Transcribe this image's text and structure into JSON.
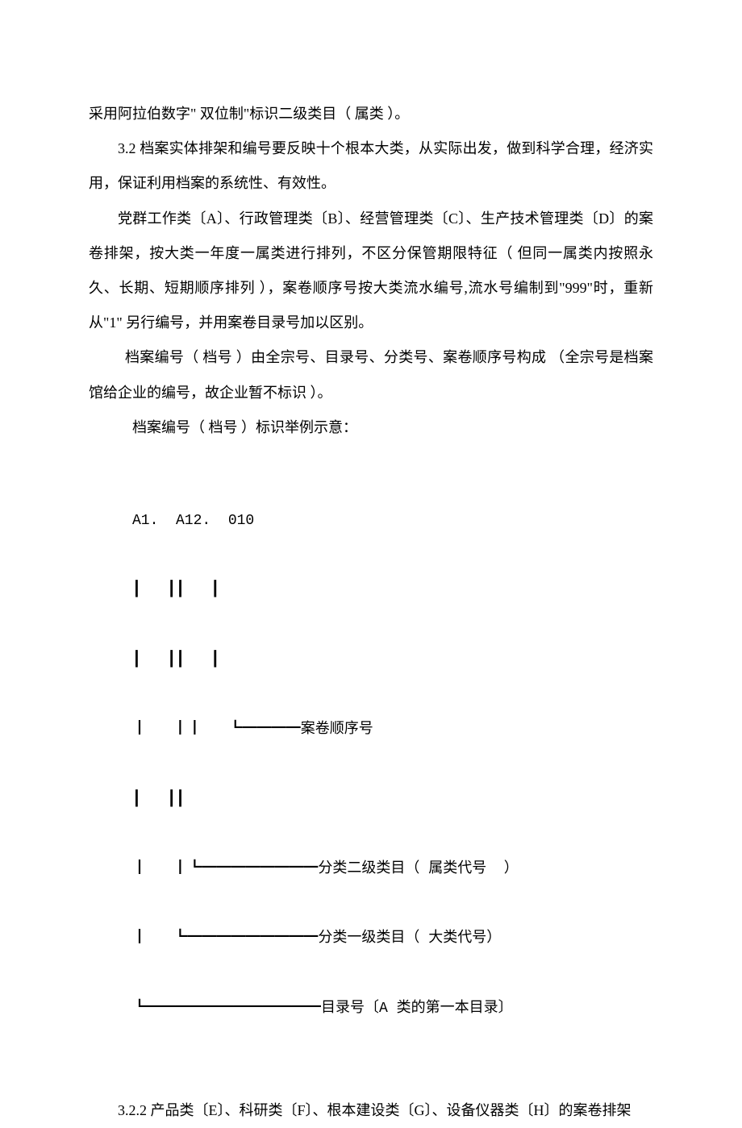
{
  "paragraphs": {
    "p1": "采用阿拉伯数字\" 双位制\"标识二级类目（ 属类 ）。",
    "p2": "3.2  档案实体排架和编号要反映十个根本大类，从实际出发，做到科学合理，经济实用，保证利用档案的系统性、有效性。",
    "p3": "党群工作类〔A〕、行政管理类〔B〕、经营管理类〔C〕、生产技术管理类〔D〕的案卷排架，按大类一年度一属类进行排列，不区分保管期限特征（ 但同一属类内按照永久、长期、短期顺序排列 ），案卷顺序号按大类流水编号,流水号编制到\"999\"时，重新从\"1\"  另行编号，并用案卷目录号加以区别。",
    "p4": "档案编号（ 档号 ）由全宗号、目录号、分类号、案卷顺序号构成 （全宗号是档案馆给企业的编号，故企业暂不标识  ）。",
    "p5": "档案编号（ 档号 ）标识举例示意：",
    "p6": "3.2.2 产品类〔E〕、科研类〔F〕、根本建设类〔G〕、设备仪器类〔H〕的案卷排架"
  },
  "diagram": {
    "header": "A1.  A12.  010",
    "line1": "┃   ┃┃   ┃",
    "line2": "┃   ┃┃   ┃",
    "line3": "┃   ┃┃   ┗━━━━案卷顺序号",
    "line4": "┃   ┃┃",
    "line5": "┃   ┃┗━━━━━━━━分类二级类目（ 属类代号  ）",
    "line6": "┃   ┗━━━━━━━━━分类一级类目（ 大类代号）",
    "line7": "┗━━━━━━━━━━━━目录号〔A 类的第一本目录〕"
  },
  "styles": {
    "text_color": "#000000",
    "background_color": "#ffffff",
    "font_size": 18,
    "line_height": 2.4
  }
}
